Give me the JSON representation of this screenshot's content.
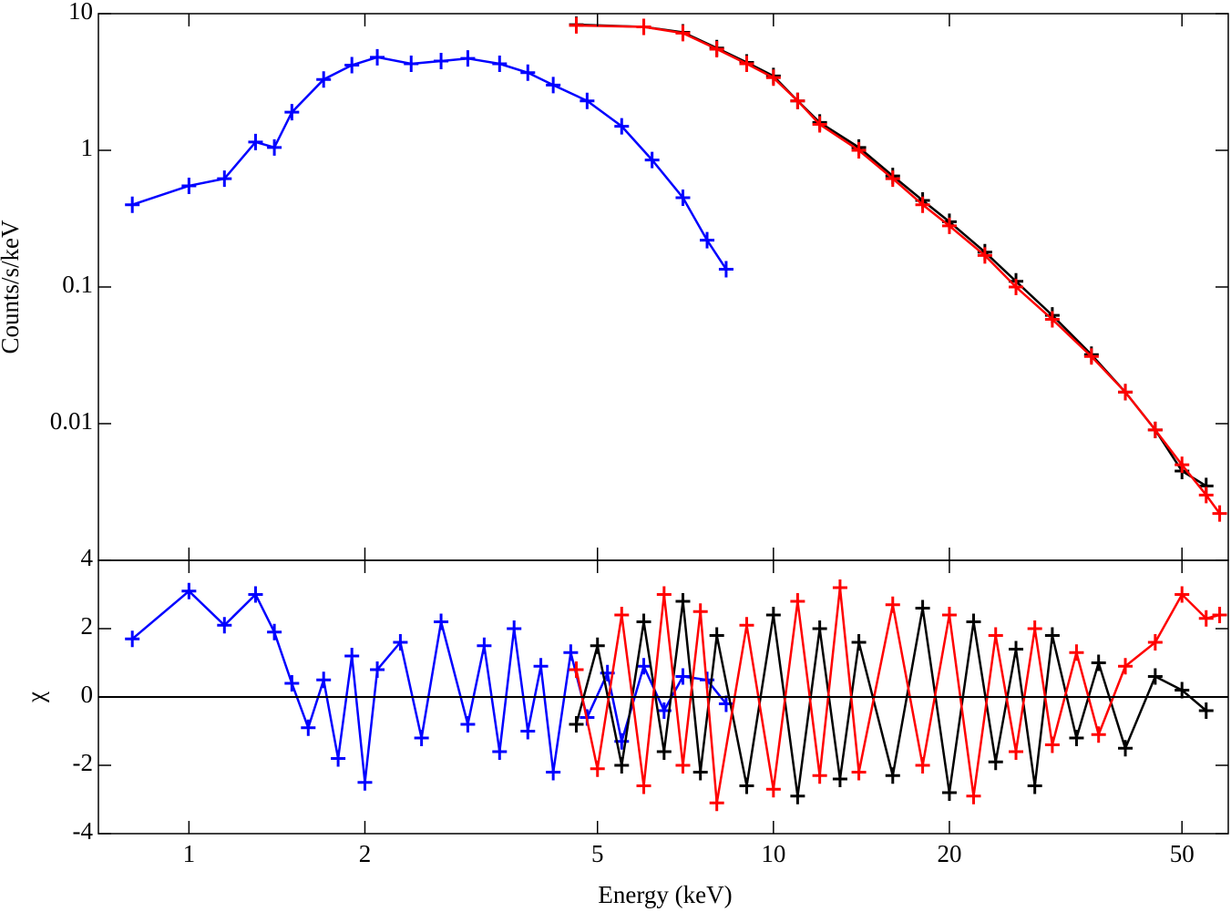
{
  "chart_data": [
    {
      "type": "line",
      "ylabel": "Counts/s/keV",
      "ylog": true,
      "xlog": true,
      "xlim": [
        0.7,
        60
      ],
      "ylim": [
        0.001,
        10
      ],
      "yticks": [
        0.01,
        0.1,
        1,
        10
      ],
      "series": [
        {
          "color": "#0000ff",
          "x": [
            0.8,
            1.0,
            1.15,
            1.3,
            1.4,
            1.5,
            1.7,
            1.9,
            2.1,
            2.4,
            2.7,
            3.0,
            3.4,
            3.8,
            4.2,
            4.8,
            5.5,
            6.2,
            7.0,
            7.7,
            8.3
          ],
          "values": [
            0.4,
            0.55,
            0.62,
            1.15,
            1.05,
            1.9,
            3.3,
            4.2,
            4.8,
            4.3,
            4.5,
            4.7,
            4.3,
            3.7,
            3.0,
            2.3,
            1.5,
            0.85,
            0.45,
            0.22,
            0.135
          ]
        },
        {
          "color": "#000000",
          "x": [
            4.6,
            6,
            7,
            8,
            9,
            10,
            11,
            12,
            14,
            16,
            18,
            20,
            23,
            26,
            30,
            35,
            40,
            45,
            50,
            55
          ],
          "values": [
            8.3,
            8.0,
            7.3,
            5.6,
            4.4,
            3.5,
            2.3,
            1.6,
            1.05,
            0.65,
            0.43,
            0.3,
            0.18,
            0.11,
            0.062,
            0.032,
            0.017,
            0.009,
            0.0045,
            0.0035
          ]
        },
        {
          "color": "#ff0000",
          "x": [
            4.6,
            6,
            7,
            8,
            9,
            10,
            11,
            12,
            14,
            16,
            18,
            20,
            23,
            26,
            30,
            35,
            40,
            45,
            50,
            55,
            58
          ],
          "values": [
            8.2,
            8.0,
            7.2,
            5.5,
            4.3,
            3.4,
            2.3,
            1.55,
            1.0,
            0.62,
            0.4,
            0.28,
            0.17,
            0.1,
            0.058,
            0.031,
            0.017,
            0.009,
            0.005,
            0.003,
            0.0022
          ]
        }
      ]
    },
    {
      "type": "line",
      "xlabel": "Energy (keV)",
      "ylabel": "χ",
      "xlog": true,
      "xlim": [
        0.7,
        60
      ],
      "ylim": [
        -4,
        4
      ],
      "yticks": [
        -4,
        -2,
        0,
        2,
        4
      ],
      "xticks": [
        1,
        2,
        5,
        10,
        20,
        50
      ],
      "zero_line": 0,
      "series": [
        {
          "color": "#0000ff",
          "x": [
            0.8,
            1.0,
            1.15,
            1.3,
            1.4,
            1.5,
            1.6,
            1.7,
            1.8,
            1.9,
            2.0,
            2.1,
            2.3,
            2.5,
            2.7,
            3.0,
            3.2,
            3.4,
            3.6,
            3.8,
            4.0,
            4.2,
            4.5,
            4.8,
            5.2,
            5.5,
            6.0,
            6.5,
            7.0,
            7.7,
            8.3
          ],
          "values": [
            1.7,
            3.1,
            2.1,
            3.0,
            1.9,
            0.4,
            -0.9,
            0.5,
            -1.8,
            1.2,
            -2.5,
            0.8,
            1.6,
            -1.2,
            2.2,
            -0.8,
            1.5,
            -1.6,
            2.0,
            -1.0,
            0.9,
            -2.2,
            1.3,
            -0.6,
            0.7,
            -1.3,
            0.9,
            -0.4,
            0.6,
            0.5,
            -0.2
          ]
        },
        {
          "color": "#000000",
          "x": [
            4.6,
            5,
            5.5,
            6,
            6.5,
            7,
            7.5,
            8,
            9,
            10,
            11,
            12,
            13,
            14,
            16,
            18,
            20,
            22,
            24,
            26,
            28,
            30,
            33,
            36,
            40,
            45,
            50,
            55
          ],
          "values": [
            -0.8,
            1.5,
            -2.0,
            2.2,
            -1.6,
            2.8,
            -2.2,
            1.8,
            -2.6,
            2.4,
            -2.9,
            2.0,
            -2.4,
            1.6,
            -2.3,
            2.6,
            -2.8,
            2.2,
            -1.9,
            1.4,
            -2.6,
            1.8,
            -1.2,
            1.0,
            -1.5,
            0.6,
            0.2,
            -0.4
          ]
        },
        {
          "color": "#ff0000",
          "x": [
            4.6,
            5,
            5.5,
            6,
            6.5,
            7,
            7.5,
            8,
            9,
            10,
            11,
            12,
            13,
            14,
            16,
            18,
            20,
            22,
            24,
            26,
            28,
            30,
            33,
            36,
            40,
            45,
            50,
            55,
            58
          ],
          "values": [
            0.8,
            -2.1,
            2.4,
            -2.6,
            3.0,
            -2.0,
            2.5,
            -3.1,
            2.1,
            -2.7,
            2.8,
            -2.3,
            3.2,
            -2.2,
            2.7,
            -2.0,
            2.4,
            -2.9,
            1.8,
            -1.6,
            2.0,
            -1.4,
            1.3,
            -1.1,
            0.9,
            1.6,
            3.0,
            2.3,
            2.4
          ]
        }
      ]
    }
  ]
}
